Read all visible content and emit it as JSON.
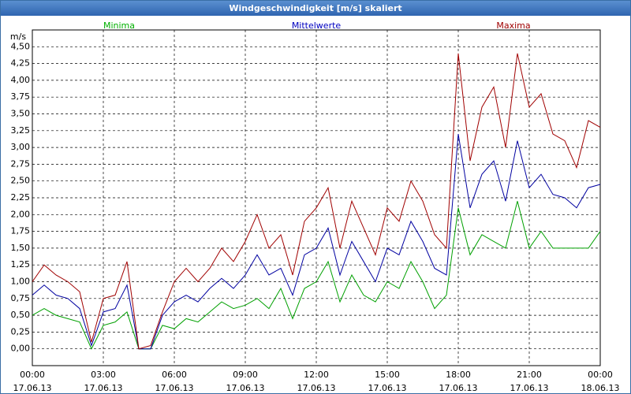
{
  "chart_data": {
    "type": "line",
    "title": "Windgeschwindigkeit [m/s] skaliert",
    "y_label": "m/s",
    "x": [
      0,
      0.5,
      1,
      1.5,
      2,
      2.5,
      3,
      3.5,
      4,
      4.5,
      5,
      5.5,
      6,
      6.5,
      7,
      7.5,
      8,
      8.5,
      9,
      9.5,
      10,
      10.5,
      11,
      11.5,
      12,
      12.5,
      13,
      13.5,
      14,
      14.5,
      15,
      15.5,
      16,
      16.5,
      17,
      17.5,
      18,
      18.5,
      19,
      19.5,
      20,
      20.5,
      21,
      21.5,
      22,
      22.5,
      23,
      23.5,
      24
    ],
    "series": [
      {
        "name": "Minima",
        "color": "#00a000",
        "legend_color": "#00b000",
        "values": [
          0.5,
          0.6,
          0.5,
          0.45,
          0.4,
          0.0,
          0.35,
          0.4,
          0.55,
          0.0,
          0.0,
          0.35,
          0.3,
          0.45,
          0.4,
          0.55,
          0.7,
          0.6,
          0.65,
          0.75,
          0.6,
          0.9,
          0.45,
          0.9,
          1.0,
          1.3,
          0.7,
          1.1,
          0.8,
          0.7,
          1.0,
          0.9,
          1.3,
          1.0,
          0.6,
          0.8,
          2.1,
          1.4,
          1.7,
          1.6,
          1.5,
          2.2,
          1.5,
          1.75,
          1.5,
          1.5,
          1.5,
          1.5,
          1.75
        ]
      },
      {
        "name": "Mittelwerte",
        "color": "#0000a0",
        "legend_color": "#0000c0",
        "values": [
          0.8,
          0.95,
          0.8,
          0.75,
          0.6,
          0.05,
          0.55,
          0.6,
          0.95,
          0.0,
          0.0,
          0.5,
          0.7,
          0.8,
          0.7,
          0.9,
          1.05,
          0.9,
          1.1,
          1.4,
          1.1,
          1.2,
          0.8,
          1.4,
          1.5,
          1.8,
          1.1,
          1.6,
          1.3,
          1.0,
          1.5,
          1.4,
          1.9,
          1.6,
          1.2,
          1.1,
          3.2,
          2.1,
          2.6,
          2.8,
          2.2,
          3.1,
          2.4,
          2.6,
          2.3,
          2.25,
          2.1,
          2.4,
          2.45
        ]
      },
      {
        "name": "Maxima",
        "color": "#a00000",
        "legend_color": "#a00000",
        "values": [
          1.0,
          1.25,
          1.1,
          1.0,
          0.85,
          0.1,
          0.75,
          0.8,
          1.3,
          0.0,
          0.05,
          0.55,
          1.0,
          1.2,
          1.0,
          1.2,
          1.5,
          1.3,
          1.6,
          2.0,
          1.5,
          1.7,
          1.1,
          1.9,
          2.1,
          2.4,
          1.5,
          2.2,
          1.8,
          1.4,
          2.1,
          1.9,
          2.5,
          2.2,
          1.7,
          1.5,
          4.4,
          2.8,
          3.6,
          3.9,
          3.0,
          4.4,
          3.6,
          3.8,
          3.2,
          3.1,
          2.7,
          3.4,
          3.3
        ]
      }
    ],
    "xlim": [
      0,
      24
    ],
    "xticks": [
      {
        "value": 0,
        "label": "00:00\n17.06.13"
      },
      {
        "value": 3,
        "label": "03:00\n17.06.13"
      },
      {
        "value": 6,
        "label": "06:00\n17.06.13"
      },
      {
        "value": 9,
        "label": "09:00\n17.06.13"
      },
      {
        "value": 12,
        "label": "12:00\n17.06.13"
      },
      {
        "value": 15,
        "label": "15:00\n17.06.13"
      },
      {
        "value": 18,
        "label": "18:00\n17.06.13"
      },
      {
        "value": 21,
        "label": "21:00\n17.06.13"
      },
      {
        "value": 24,
        "label": "00:00\n18.06.13"
      }
    ],
    "ylim": [
      -0.25,
      4.75
    ],
    "yticks": [
      {
        "value": 0,
        "label": "0,00"
      },
      {
        "value": 0.25,
        "label": "0,25"
      },
      {
        "value": 0.5,
        "label": "0,50"
      },
      {
        "value": 0.75,
        "label": "0,75"
      },
      {
        "value": 1,
        "label": "1,00"
      },
      {
        "value": 1.25,
        "label": "1,25"
      },
      {
        "value": 1.5,
        "label": "1,50"
      },
      {
        "value": 1.75,
        "label": "1,75"
      },
      {
        "value": 2,
        "label": "2,00"
      },
      {
        "value": 2.25,
        "label": "2,25"
      },
      {
        "value": 2.5,
        "label": "2,50"
      },
      {
        "value": 2.75,
        "label": "2,75"
      },
      {
        "value": 3,
        "label": "3,00"
      },
      {
        "value": 3.25,
        "label": "3,25"
      },
      {
        "value": 3.5,
        "label": "3,50"
      },
      {
        "value": 3.75,
        "label": "3,75"
      },
      {
        "value": 4,
        "label": "4,00"
      },
      {
        "value": 4.25,
        "label": "4,25"
      },
      {
        "value": 4.5,
        "label": "4,50"
      }
    ],
    "grid": true
  }
}
